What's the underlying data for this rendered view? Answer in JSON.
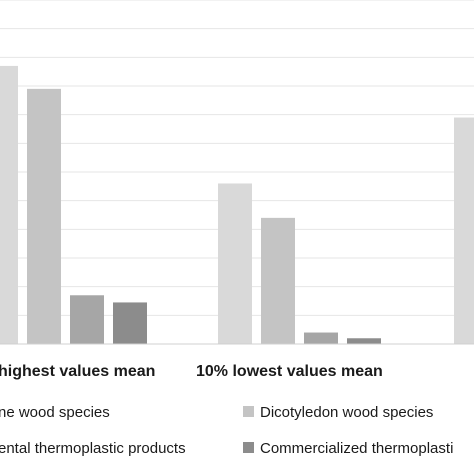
{
  "chart_data": {
    "type": "bar",
    "title": "",
    "xlabel": "",
    "ylabel": "",
    "categories": [
      "highest values mean",
      "10% lowest values mean",
      ""
    ],
    "ylim": [
      0,
      12
    ],
    "grid": true,
    "legend_position": "bottom",
    "series": [
      {
        "name": "ne wood species",
        "color": "#d9d9d9",
        "values": [
          9.7,
          5.6,
          7.9
        ]
      },
      {
        "name": "Dicotyledon wood species",
        "color": "#c4c4c4",
        "values": [
          8.9,
          4.4,
          null
        ]
      },
      {
        "name": "ental thermoplastic products",
        "color": "#a6a6a6",
        "values": [
          1.7,
          0.4,
          null
        ]
      },
      {
        "name": "Commercialized thermoplasti",
        "color": "#8c8c8c",
        "values": [
          1.45,
          0.2,
          null
        ]
      }
    ]
  }
}
